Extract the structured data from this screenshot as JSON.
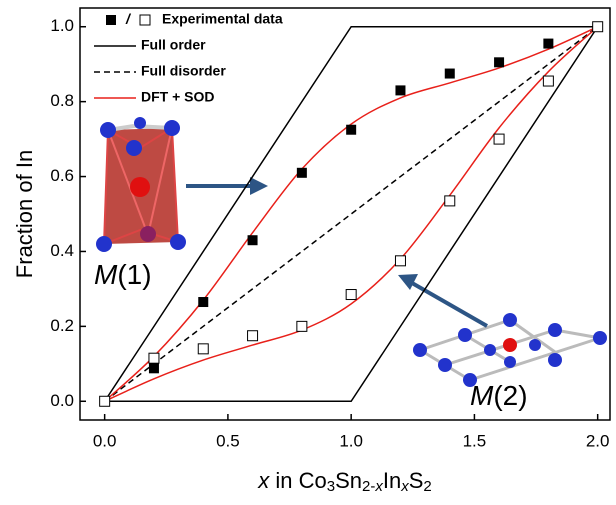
{
  "chart_data": {
    "type": "scatter-line",
    "y_label": "Fraction of In",
    "x_label_parts": [
      "x",
      " in Co",
      "3",
      "Sn",
      "2-",
      "x",
      "In",
      "x",
      "S",
      "2"
    ],
    "xlim": [
      -0.1,
      2.05
    ],
    "ylim": [
      -0.05,
      1.05
    ],
    "xticks": [
      {
        "value": 0,
        "label": "0.0"
      },
      {
        "value": 0.5,
        "label": "0.5"
      },
      {
        "value": 1,
        "label": "1.0"
      },
      {
        "value": 1.5,
        "label": "1.5"
      },
      {
        "value": 2,
        "label": "2.0"
      }
    ],
    "yticks": [
      {
        "value": 0,
        "label": "0.0"
      },
      {
        "value": 0.2,
        "label": "0.2"
      },
      {
        "value": 0.4,
        "label": "0.4"
      },
      {
        "value": 0.6,
        "label": "0.6"
      },
      {
        "value": 0.8,
        "label": "0.8"
      },
      {
        "value": 1,
        "label": "1.0"
      }
    ],
    "legend_separator": "/",
    "series": [
      {
        "name": "Experimental data",
        "kind": "filled-square",
        "color": "#000000",
        "x": [
          0.2,
          0.4,
          0.6,
          0.8,
          1.0,
          1.2,
          1.4,
          1.6,
          1.8
        ],
        "values": [
          0.088,
          0.265,
          0.43,
          0.61,
          0.725,
          0.83,
          0.875,
          0.905,
          0.955
        ]
      },
      {
        "kind": "open-square",
        "color": "#000000",
        "x": [
          0,
          0.2,
          0.4,
          0.6,
          0.8,
          1.0,
          1.2,
          1.4,
          1.6,
          1.8,
          2.0
        ],
        "values": [
          0,
          0.115,
          0.14,
          0.175,
          0.2,
          0.285,
          0.375,
          0.535,
          0.7,
          0.855,
          1.0
        ]
      },
      {
        "name": "Full order",
        "kind": "line",
        "color": "#000000",
        "x": [
          0,
          1,
          2,
          1,
          0
        ],
        "values": [
          0,
          0,
          1,
          1,
          0
        ]
      },
      {
        "name": "Full disorder",
        "kind": "dashed",
        "color": "#000000",
        "x": [
          0,
          2
        ],
        "values": [
          0,
          1
        ]
      },
      {
        "name": "DFT + SOD",
        "kind": "curve",
        "color": "#e8201a",
        "x": [
          0,
          0.2,
          0.4,
          0.6,
          0.8,
          1.0,
          1.2,
          1.4,
          1.6,
          1.8,
          2.0,
          null,
          0,
          0.2,
          0.4,
          0.6,
          0.8,
          1.0,
          1.2,
          1.4,
          1.6,
          1.8,
          2.0
        ],
        "values": [
          0,
          0.12,
          0.27,
          0.45,
          0.62,
          0.74,
          0.81,
          0.85,
          0.89,
          0.94,
          1.0,
          null,
          0,
          0.06,
          0.11,
          0.15,
          0.19,
          0.26,
          0.38,
          0.55,
          0.73,
          0.88,
          1.0
        ]
      }
    ],
    "annotations": [
      {
        "italic": "M",
        "text": "(1)"
      },
      {
        "italic": "M",
        "text": "(2)"
      }
    ]
  }
}
